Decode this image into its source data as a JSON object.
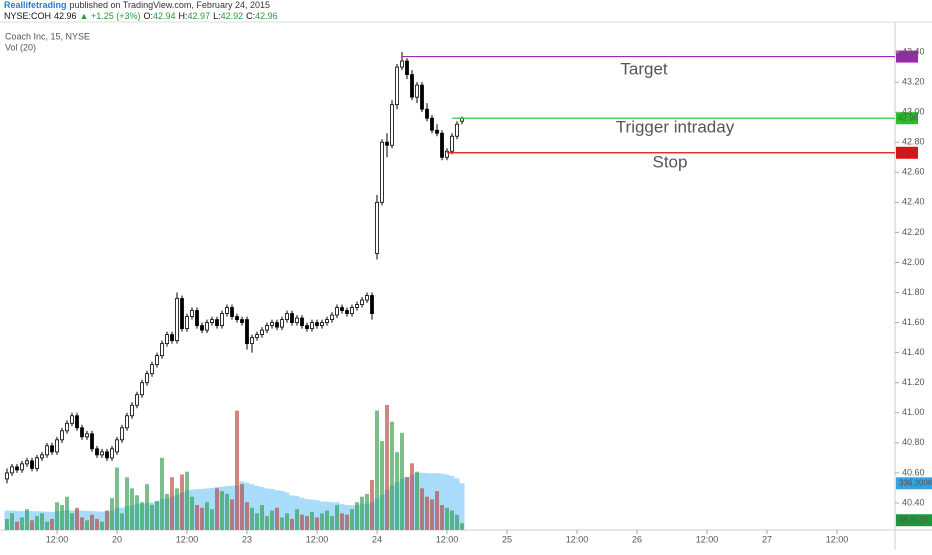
{
  "header": {
    "author": "Reallifetrading",
    "published": "published on TradingView.com, February 24, 2015",
    "symbol": "NYSE:COH",
    "last": 42.96,
    "change": "▲ +1.25 (+3%)",
    "ohlc": [
      {
        "k": "O:",
        "v": 42.94
      },
      {
        "k": "H:",
        "v": 42.97
      },
      {
        "k": "L:",
        "v": 42.92
      },
      {
        "k": "C:",
        "v": 42.96
      }
    ]
  },
  "chart_data": {
    "type": "candlestick",
    "title": "Coach Inc, 15, NYSE",
    "volume_title": "Vol (20)",
    "xlim": [
      -1.4,
      177.6
    ],
    "xticks": [
      {
        "value": 10,
        "label": "12:00"
      },
      {
        "value": 22,
        "label": "20"
      },
      {
        "value": 36,
        "label": "12:00"
      },
      {
        "value": 48,
        "label": "23"
      },
      {
        "value": 62,
        "label": "12:00"
      },
      {
        "value": 74,
        "label": "24"
      },
      {
        "value": 88,
        "label": "12:00"
      },
      {
        "value": 100,
        "label": "25"
      },
      {
        "value": 114,
        "label": "12:00"
      },
      {
        "value": 126,
        "label": "26"
      },
      {
        "value": 140,
        "label": "12:00"
      },
      {
        "value": 152,
        "label": "27"
      },
      {
        "value": 166,
        "label": "12:00"
      }
    ],
    "ylim": [
      40.22,
      43.6
    ],
    "yticks": [
      {
        "value": 43.4,
        "label": "43.40"
      },
      {
        "value": 43.2,
        "label": "43.20"
      },
      {
        "value": 43,
        "label": "43.00"
      },
      {
        "value": 42.8,
        "label": "42.80"
      },
      {
        "value": 42.6,
        "label": "42.60"
      },
      {
        "value": 42.4,
        "label": "42.40"
      },
      {
        "value": 42.2,
        "label": "42.20"
      },
      {
        "value": 42,
        "label": "42.00"
      },
      {
        "value": 41.8,
        "label": "41.80"
      },
      {
        "value": 41.6,
        "label": "41.60"
      },
      {
        "value": 41.4,
        "label": "41.40"
      },
      {
        "value": 41.2,
        "label": "41.20"
      },
      {
        "value": 41,
        "label": "41.00"
      },
      {
        "value": 40.8,
        "label": "40.80"
      },
      {
        "value": 40.6,
        "label": "40.60"
      },
      {
        "value": 40.4,
        "label": "40.40"
      }
    ],
    "up_color": "#ffffff",
    "down_color": "#000000",
    "ohlc": [
      [
        40.56,
        40.63,
        40.53,
        40.6
      ],
      [
        40.6,
        40.66,
        40.58,
        40.64
      ],
      [
        40.64,
        40.66,
        40.6,
        40.62
      ],
      [
        40.62,
        40.68,
        40.6,
        40.66
      ],
      [
        40.66,
        40.7,
        40.64,
        40.68
      ],
      [
        40.68,
        40.7,
        40.61,
        40.63
      ],
      [
        40.63,
        40.72,
        40.61,
        40.7
      ],
      [
        40.7,
        40.74,
        40.68,
        40.72
      ],
      [
        40.72,
        40.8,
        40.7,
        40.78
      ],
      [
        40.78,
        40.8,
        40.72,
        40.74
      ],
      [
        40.74,
        40.84,
        40.72,
        40.82
      ],
      [
        40.82,
        40.9,
        40.8,
        40.88
      ],
      [
        40.88,
        40.95,
        40.86,
        40.93
      ],
      [
        40.93,
        41.0,
        40.91,
        40.98
      ],
      [
        40.98,
        41.0,
        40.88,
        40.9
      ],
      [
        40.9,
        40.92,
        40.82,
        40.84
      ],
      [
        40.84,
        40.88,
        40.82,
        40.86
      ],
      [
        40.86,
        40.88,
        40.74,
        40.76
      ],
      [
        40.76,
        40.78,
        40.7,
        40.72
      ],
      [
        40.72,
        40.76,
        40.7,
        40.74
      ],
      [
        40.74,
        40.76,
        40.68,
        40.7
      ],
      [
        40.7,
        40.78,
        40.68,
        40.76
      ],
      [
        40.74,
        40.84,
        40.72,
        40.82
      ],
      [
        40.82,
        40.92,
        40.8,
        40.9
      ],
      [
        40.9,
        41.0,
        40.88,
        40.98
      ],
      [
        40.98,
        41.07,
        40.96,
        41.05
      ],
      [
        41.05,
        41.14,
        41.03,
        41.12
      ],
      [
        41.12,
        41.22,
        41.1,
        41.2
      ],
      [
        41.2,
        41.28,
        41.18,
        41.26
      ],
      [
        41.26,
        41.34,
        41.24,
        41.32
      ],
      [
        41.32,
        41.4,
        41.3,
        41.38
      ],
      [
        41.38,
        41.48,
        41.36,
        41.46
      ],
      [
        41.46,
        41.54,
        41.44,
        41.52
      ],
      [
        41.52,
        41.54,
        41.46,
        41.48
      ],
      [
        41.48,
        41.8,
        41.46,
        41.76
      ],
      [
        41.76,
        41.78,
        41.54,
        41.56
      ],
      [
        41.56,
        41.66,
        41.54,
        41.64
      ],
      [
        41.64,
        41.7,
        41.62,
        41.68
      ],
      [
        41.68,
        41.7,
        41.56,
        41.58
      ],
      [
        41.58,
        41.6,
        41.53,
        41.55
      ],
      [
        41.55,
        41.62,
        41.53,
        41.6
      ],
      [
        41.6,
        41.64,
        41.58,
        41.62
      ],
      [
        41.62,
        41.64,
        41.56,
        41.58
      ],
      [
        41.58,
        41.68,
        41.56,
        41.66
      ],
      [
        41.66,
        41.72,
        41.64,
        41.7
      ],
      [
        41.7,
        41.72,
        41.62,
        41.64
      ],
      [
        41.64,
        41.66,
        41.6,
        41.62
      ],
      [
        41.62,
        41.64,
        41.58,
        41.6
      ],
      [
        41.62,
        41.64,
        41.42,
        41.46
      ],
      [
        41.46,
        41.52,
        41.4,
        41.5
      ],
      [
        41.5,
        41.54,
        41.48,
        41.52
      ],
      [
        41.52,
        41.57,
        41.5,
        41.55
      ],
      [
        41.55,
        41.6,
        41.53,
        41.58
      ],
      [
        41.58,
        41.62,
        41.56,
        41.6
      ],
      [
        41.6,
        41.62,
        41.55,
        41.57
      ],
      [
        41.57,
        41.64,
        41.55,
        41.62
      ],
      [
        41.62,
        41.68,
        41.6,
        41.66
      ],
      [
        41.66,
        41.68,
        41.58,
        41.6
      ],
      [
        41.6,
        41.65,
        41.58,
        41.63
      ],
      [
        41.63,
        41.65,
        41.56,
        41.58
      ],
      [
        41.58,
        41.6,
        41.54,
        41.56
      ],
      [
        41.56,
        41.62,
        41.54,
        41.6
      ],
      [
        41.6,
        41.62,
        41.56,
        41.58
      ],
      [
        41.58,
        41.62,
        41.56,
        41.6
      ],
      [
        41.6,
        41.64,
        41.58,
        41.62
      ],
      [
        41.62,
        41.67,
        41.6,
        41.65
      ],
      [
        41.65,
        41.72,
        41.63,
        41.7
      ],
      [
        41.7,
        41.72,
        41.66,
        41.68
      ],
      [
        41.68,
        41.7,
        41.64,
        41.66
      ],
      [
        41.66,
        41.72,
        41.64,
        41.7
      ],
      [
        41.7,
        41.74,
        41.68,
        41.72
      ],
      [
        41.72,
        41.77,
        41.7,
        41.75
      ],
      [
        41.75,
        41.8,
        41.73,
        41.78
      ],
      [
        41.78,
        41.8,
        41.62,
        41.66
      ],
      [
        42.06,
        42.45,
        42.02,
        42.4
      ],
      [
        42.4,
        42.82,
        42.38,
        42.8
      ],
      [
        42.8,
        42.86,
        42.7,
        42.78
      ],
      [
        42.78,
        43.08,
        42.76,
        43.05
      ],
      [
        43.05,
        43.32,
        43.02,
        43.3
      ],
      [
        43.3,
        43.4,
        43.28,
        43.34
      ],
      [
        43.34,
        43.36,
        43.22,
        43.25
      ],
      [
        43.25,
        43.28,
        43.08,
        43.1
      ],
      [
        43.1,
        43.2,
        43.06,
        43.18
      ],
      [
        43.18,
        43.2,
        43.0,
        43.02
      ],
      [
        43.02,
        43.06,
        42.94,
        42.96
      ],
      [
        42.96,
        42.98,
        42.86,
        42.88
      ],
      [
        42.88,
        42.92,
        42.84,
        42.86
      ],
      [
        42.86,
        42.88,
        42.68,
        42.7
      ],
      [
        42.7,
        42.76,
        42.68,
        42.74
      ],
      [
        42.74,
        42.86,
        42.72,
        42.84
      ],
      [
        42.84,
        42.94,
        42.82,
        42.92
      ],
      [
        42.94,
        42.97,
        42.92,
        42.96
      ]
    ],
    "vlim": [
      0,
      900
    ],
    "volume_up_color": "#2e9e4f",
    "volume_down_color": "#b5473f",
    "volume_ma_color": "#a9dbfa",
    "volume": [
      80,
      120,
      60,
      90,
      150,
      70,
      100,
      120,
      60,
      80,
      200,
      180,
      240,
      120,
      160,
      90,
      70,
      110,
      80,
      60,
      140,
      230,
      450,
      120,
      380,
      300,
      250,
      200,
      330,
      180,
      210,
      520,
      260,
      380,
      300,
      400,
      420,
      240,
      180,
      160,
      200,
      150,
      300,
      280,
      260,
      220,
      860,
      330,
      200,
      160,
      120,
      180,
      100,
      140,
      160,
      90,
      120,
      80,
      150,
      110,
      100,
      130,
      90,
      120,
      140,
      100,
      180,
      120,
      110,
      150,
      200,
      240,
      260,
      360,
      860,
      640,
      900,
      780,
      560,
      700,
      380,
      480,
      420,
      300,
      240,
      220,
      280,
      180,
      160,
      140,
      110,
      48.817
    ],
    "volume_label": "48.817K",
    "volume_ma": [
      140,
      140,
      138,
      136,
      138,
      136,
      135,
      134,
      132,
      130,
      135,
      138,
      142,
      140,
      142,
      140,
      138,
      136,
      134,
      132,
      134,
      140,
      160,
      160,
      172,
      180,
      185,
      188,
      196,
      198,
      202,
      222,
      228,
      240,
      252,
      268,
      282,
      290,
      294,
      296,
      300,
      302,
      310,
      312,
      316,
      318,
      320,
      350,
      340,
      330,
      318,
      310,
      300,
      296,
      286,
      282,
      270,
      248,
      244,
      232,
      222,
      220,
      214,
      206,
      204,
      200,
      200,
      186,
      180,
      178,
      180,
      186,
      190,
      200,
      228,
      252,
      290,
      320,
      344,
      370,
      382,
      398,
      410,
      412,
      410,
      408,
      410,
      406,
      400,
      390,
      372,
      336.2
    ],
    "volume_ma_label": "336.200K",
    "levels": [
      {
        "name": "Target",
        "value": 43.37,
        "color": "#9c27b0",
        "x": 79
      },
      {
        "name": "Trigger intraday",
        "value": 42.96,
        "color": "#21c321",
        "text_color": "#1e7a5a",
        "x": 89
      },
      {
        "name": "Stop",
        "value": 42.73,
        "color": "#e01010",
        "x": 88
      }
    ]
  }
}
